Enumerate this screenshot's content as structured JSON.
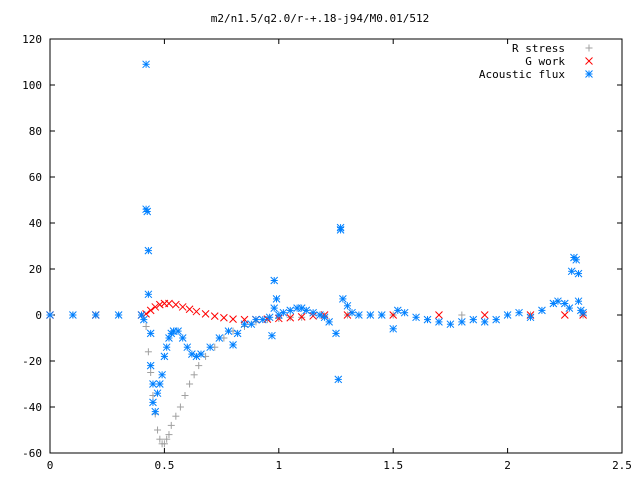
{
  "chart_data": {
    "type": "scatter",
    "title": "m2/n1.5/q2.0/r-+.18-j94/M0.01/512",
    "xlabel": "",
    "ylabel": "",
    "xlim": [
      0,
      2.5
    ],
    "ylim": [
      -60,
      120
    ],
    "xticks": [
      0,
      0.5,
      1,
      1.5,
      2,
      2.5
    ],
    "yticks": [
      -60,
      -40,
      -20,
      0,
      20,
      40,
      60,
      80,
      100,
      120
    ],
    "xtick_labels": [
      "0",
      "0.5",
      "1",
      "1.5",
      "2",
      "2.5"
    ],
    "ytick_labels": [
      "-60",
      "-40",
      "-20",
      "0",
      "20",
      "40",
      "60",
      "80",
      "100",
      "120"
    ],
    "grid": false,
    "legend_position": "top-right",
    "series": [
      {
        "name": "R stress",
        "color": "#a0a0a0",
        "marker": "plus",
        "points": [
          [
            0.0,
            0
          ],
          [
            0.1,
            0
          ],
          [
            0.2,
            0
          ],
          [
            0.3,
            0
          ],
          [
            0.4,
            0
          ],
          [
            0.42,
            -5
          ],
          [
            0.43,
            -16
          ],
          [
            0.44,
            -25
          ],
          [
            0.45,
            -35
          ],
          [
            0.46,
            -43
          ],
          [
            0.47,
            -50
          ],
          [
            0.48,
            -54
          ],
          [
            0.49,
            -56
          ],
          [
            0.5,
            -56
          ],
          [
            0.51,
            -54
          ],
          [
            0.52,
            -52
          ],
          [
            0.53,
            -48
          ],
          [
            0.55,
            -44
          ],
          [
            0.57,
            -40
          ],
          [
            0.59,
            -35
          ],
          [
            0.61,
            -30
          ],
          [
            0.63,
            -26
          ],
          [
            0.65,
            -22
          ],
          [
            0.68,
            -18
          ],
          [
            0.72,
            -14
          ],
          [
            0.76,
            -10
          ],
          [
            0.8,
            -7
          ],
          [
            0.85,
            -5
          ],
          [
            0.9,
            -3
          ],
          [
            0.95,
            -2
          ],
          [
            1.0,
            -1.5
          ],
          [
            1.05,
            -1
          ],
          [
            1.1,
            -1
          ],
          [
            1.2,
            -0.5
          ],
          [
            1.3,
            0
          ],
          [
            1.5,
            0
          ],
          [
            1.8,
            0
          ],
          [
            2.1,
            0
          ],
          [
            2.33,
            0
          ]
        ]
      },
      {
        "name": "G work",
        "color": "#ff0000",
        "marker": "cross",
        "points": [
          [
            0.0,
            0
          ],
          [
            0.2,
            0
          ],
          [
            0.4,
            0
          ],
          [
            0.42,
            0.5
          ],
          [
            0.44,
            2
          ],
          [
            0.46,
            3.5
          ],
          [
            0.48,
            4.5
          ],
          [
            0.5,
            5
          ],
          [
            0.52,
            5
          ],
          [
            0.55,
            4.5
          ],
          [
            0.58,
            3.5
          ],
          [
            0.61,
            2.5
          ],
          [
            0.64,
            1.5
          ],
          [
            0.68,
            0.5
          ],
          [
            0.72,
            -0.5
          ],
          [
            0.76,
            -1.2
          ],
          [
            0.8,
            -1.8
          ],
          [
            0.85,
            -2
          ],
          [
            0.9,
            -2
          ],
          [
            0.95,
            -1.8
          ],
          [
            1.0,
            -1.5
          ],
          [
            1.05,
            -1.2
          ],
          [
            1.1,
            -0.8
          ],
          [
            1.15,
            -0.4
          ],
          [
            1.2,
            0
          ],
          [
            1.3,
            0
          ],
          [
            1.5,
            0
          ],
          [
            1.7,
            0
          ],
          [
            1.9,
            0
          ],
          [
            2.1,
            0
          ],
          [
            2.25,
            0
          ],
          [
            2.33,
            0
          ]
        ]
      },
      {
        "name": "Acoustic flux",
        "color": "#0080ff",
        "marker": "star",
        "points": [
          [
            0.0,
            0
          ],
          [
            0.1,
            0
          ],
          [
            0.2,
            0
          ],
          [
            0.3,
            0
          ],
          [
            0.4,
            0
          ],
          [
            0.41,
            -2
          ],
          [
            0.42,
            109
          ],
          [
            0.42,
            46
          ],
          [
            0.425,
            45
          ],
          [
            0.43,
            28
          ],
          [
            0.43,
            9
          ],
          [
            0.44,
            -8
          ],
          [
            0.44,
            -22
          ],
          [
            0.45,
            -30
          ],
          [
            0.45,
            -38
          ],
          [
            0.46,
            -42
          ],
          [
            0.47,
            -34
          ],
          [
            0.48,
            -30
          ],
          [
            0.49,
            -26
          ],
          [
            0.5,
            -18
          ],
          [
            0.51,
            -14
          ],
          [
            0.52,
            -10
          ],
          [
            0.53,
            -8
          ],
          [
            0.54,
            -7
          ],
          [
            0.56,
            -7
          ],
          [
            0.58,
            -10
          ],
          [
            0.6,
            -14
          ],
          [
            0.62,
            -17
          ],
          [
            0.64,
            -18
          ],
          [
            0.66,
            -17
          ],
          [
            0.7,
            -14
          ],
          [
            0.74,
            -10
          ],
          [
            0.78,
            -7
          ],
          [
            0.8,
            -13
          ],
          [
            0.82,
            -8
          ],
          [
            0.85,
            -4
          ],
          [
            0.88,
            -4
          ],
          [
            0.9,
            -2
          ],
          [
            0.93,
            -2
          ],
          [
            0.96,
            -1
          ],
          [
            0.97,
            -9
          ],
          [
            0.98,
            3
          ],
          [
            0.98,
            15
          ],
          [
            0.99,
            7
          ],
          [
            1.0,
            0
          ],
          [
            1.02,
            1
          ],
          [
            1.05,
            2
          ],
          [
            1.08,
            3
          ],
          [
            1.1,
            3
          ],
          [
            1.12,
            2
          ],
          [
            1.15,
            1
          ],
          [
            1.18,
            0
          ],
          [
            1.2,
            -1
          ],
          [
            1.22,
            -3
          ],
          [
            1.25,
            -8
          ],
          [
            1.26,
            -28
          ],
          [
            1.27,
            37
          ],
          [
            1.27,
            38
          ],
          [
            1.28,
            7
          ],
          [
            1.3,
            4
          ],
          [
            1.32,
            1
          ],
          [
            1.35,
            0
          ],
          [
            1.4,
            0
          ],
          [
            1.45,
            0
          ],
          [
            1.5,
            -6
          ],
          [
            1.52,
            2
          ],
          [
            1.55,
            1
          ],
          [
            1.6,
            -1
          ],
          [
            1.65,
            -2
          ],
          [
            1.7,
            -3
          ],
          [
            1.75,
            -4
          ],
          [
            1.8,
            -3
          ],
          [
            1.85,
            -2
          ],
          [
            1.9,
            -3
          ],
          [
            1.95,
            -2
          ],
          [
            2.0,
            0
          ],
          [
            2.05,
            1
          ],
          [
            2.1,
            -1
          ],
          [
            2.15,
            2
          ],
          [
            2.2,
            5
          ],
          [
            2.22,
            6
          ],
          [
            2.25,
            5
          ],
          [
            2.27,
            3
          ],
          [
            2.28,
            19
          ],
          [
            2.29,
            25
          ],
          [
            2.3,
            24
          ],
          [
            2.31,
            18
          ],
          [
            2.31,
            6
          ],
          [
            2.32,
            2
          ],
          [
            2.33,
            1
          ]
        ]
      }
    ]
  }
}
